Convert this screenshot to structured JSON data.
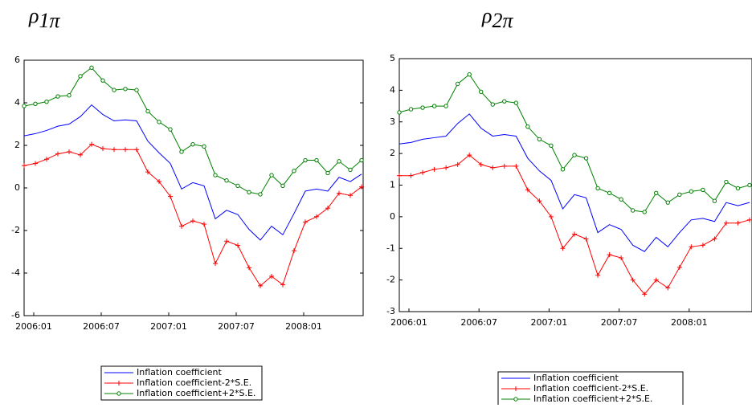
{
  "chart_data": [
    {
      "type": "line",
      "title": "ρ",
      "title_subscript": "1π",
      "categories": [
        "2006:01",
        null,
        null,
        null,
        null,
        null,
        "2006:07",
        null,
        null,
        null,
        null,
        null,
        "2007:01",
        null,
        null,
        null,
        null,
        null,
        "2007:07",
        null,
        null,
        null,
        null,
        null,
        "2008:01",
        null,
        null,
        null,
        null,
        null,
        null
      ],
      "ylim": [
        -6,
        6
      ],
      "yticks": [
        -6,
        -4,
        -2,
        0,
        2,
        4,
        6
      ],
      "series": [
        {
          "name": "Inflation coefficient",
          "color": "#0000ff",
          "marker": "none",
          "values": [
            2.45,
            2.55,
            2.7,
            2.9,
            3.0,
            3.35,
            3.9,
            3.45,
            3.15,
            3.2,
            3.15,
            2.2,
            1.65,
            1.15,
            -0.05,
            0.25,
            0.1,
            -1.45,
            -1.05,
            -1.25,
            -1.95,
            -2.45,
            -1.8,
            -2.2,
            -1.2,
            -0.15,
            -0.05,
            -0.15,
            0.5,
            0.3,
            0.65
          ]
        },
        {
          "name": "Inflation coefficient-2*S.E.",
          "color": "#ff0000",
          "marker": "plus",
          "values": [
            1.05,
            1.15,
            1.35,
            1.6,
            1.7,
            1.55,
            2.05,
            1.85,
            1.8,
            1.8,
            1.8,
            0.75,
            0.3,
            -0.4,
            -1.8,
            -1.55,
            -1.7,
            -3.55,
            -2.5,
            -2.7,
            -3.75,
            -4.6,
            -4.15,
            -4.55,
            -2.95,
            -1.6,
            -1.35,
            -0.95,
            -0.25,
            -0.35,
            0.05
          ]
        },
        {
          "name": "Inflation coefficient+2*S.E.",
          "color": "#008000",
          "marker": "circle",
          "values": [
            3.85,
            3.95,
            4.05,
            4.3,
            4.35,
            5.25,
            5.65,
            5.05,
            4.6,
            4.65,
            4.6,
            3.6,
            3.1,
            2.75,
            1.7,
            2.05,
            1.95,
            0.6,
            0.35,
            0.1,
            -0.2,
            -0.3,
            0.6,
            0.1,
            0.8,
            1.3,
            1.3,
            0.7,
            1.25,
            0.85,
            1.3
          ]
        }
      ]
    },
    {
      "type": "line",
      "title": "ρ",
      "title_subscript": "2π",
      "categories": [
        "2006:01",
        null,
        null,
        null,
        null,
        null,
        "2006:07",
        null,
        null,
        null,
        null,
        null,
        "2007:01",
        null,
        null,
        null,
        null,
        null,
        "2007:07",
        null,
        null,
        null,
        null,
        null,
        "2008:01",
        null,
        null,
        null,
        null,
        null,
        null
      ],
      "ylim": [
        -3,
        5
      ],
      "yticks": [
        -3,
        -2,
        -1,
        0,
        1,
        2,
        3,
        4,
        5
      ],
      "series": [
        {
          "name": "Inflation coefficient",
          "color": "#0000ff",
          "marker": "none",
          "values": [
            2.3,
            2.35,
            2.45,
            2.5,
            2.55,
            2.95,
            3.25,
            2.8,
            2.55,
            2.6,
            2.55,
            1.85,
            1.45,
            1.15,
            0.25,
            0.7,
            0.6,
            -0.5,
            -0.25,
            -0.4,
            -0.9,
            -1.1,
            -0.65,
            -0.95,
            -0.5,
            -0.1,
            -0.05,
            -0.15,
            0.45,
            0.35,
            0.45
          ]
        },
        {
          "name": "Inflation coefficient-2*S.E.",
          "color": "#ff0000",
          "marker": "plus",
          "values": [
            1.3,
            1.3,
            1.4,
            1.5,
            1.55,
            1.65,
            1.95,
            1.65,
            1.55,
            1.6,
            1.6,
            0.85,
            0.5,
            0.0,
            -1.0,
            -0.55,
            -0.7,
            -1.85,
            -1.2,
            -1.3,
            -2.0,
            -2.45,
            -2.0,
            -2.25,
            -1.6,
            -0.95,
            -0.9,
            -0.7,
            -0.2,
            -0.2,
            -0.1
          ]
        },
        {
          "name": "Inflation coefficient+2*S.E.",
          "color": "#008000",
          "marker": "circle",
          "values": [
            3.3,
            3.4,
            3.45,
            3.5,
            3.5,
            4.2,
            4.5,
            3.95,
            3.55,
            3.65,
            3.6,
            2.85,
            2.45,
            2.25,
            1.5,
            1.95,
            1.85,
            0.9,
            0.75,
            0.55,
            0.2,
            0.15,
            0.75,
            0.45,
            0.7,
            0.8,
            0.85,
            0.5,
            1.1,
            0.9,
            1.0
          ]
        }
      ]
    }
  ]
}
